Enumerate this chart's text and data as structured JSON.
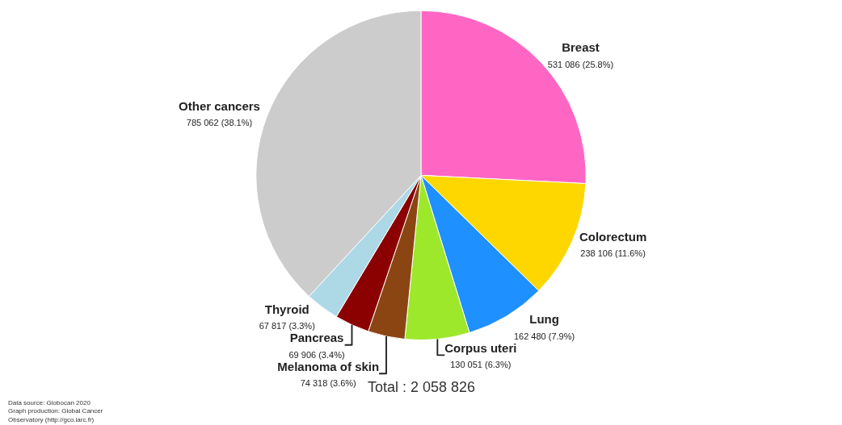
{
  "chart_data": {
    "type": "pie",
    "categories": [
      "Breast",
      "Colorectum",
      "Lung",
      "Corpus uteri",
      "Melanoma of skin",
      "Pancreas",
      "Thyroid",
      "Other cancers"
    ],
    "values": [
      531086,
      238106,
      162480,
      130051,
      74318,
      69906,
      67817,
      785062
    ],
    "value_labels": [
      "531 086 (25.8%)",
      "238 106 (11.6%)",
      "162 480 (7.9%)",
      "130 051 (6.3%)",
      "74 318 (3.6%)",
      "69 906 (3.4%)",
      "67 817 (3.3%)",
      "785 062 (38.1%)"
    ],
    "colors": [
      "#ff66c4",
      "#ffd700",
      "#1e90ff",
      "#9de82b",
      "#8b4513",
      "#8b0000",
      "#add8e6",
      "#cccccc"
    ],
    "annotations": [
      "Total : 2 058 826",
      "Data source: Globocan 2020\nGraph production: Global Cancer\nObservatory (http://gco.iarc.fr)"
    ],
    "legend": false
  }
}
